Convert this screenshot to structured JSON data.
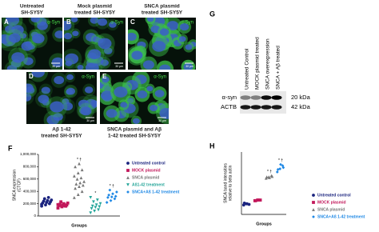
{
  "panels": [
    {
      "letter": "A",
      "label": [
        "Untreated",
        "SH-SY5Y"
      ],
      "marker": "α-Syn",
      "scale": "30 µm"
    },
    {
      "letter": "B",
      "label": [
        "Mock plasmid",
        "treated  SH-SY5Y"
      ],
      "marker": "α-Syn",
      "scale": "30 µm"
    },
    {
      "letter": "C",
      "label": [
        "SNCA plasmid",
        "treated SH-SY5Y"
      ],
      "marker": "α-Syn",
      "scale": "30 µm"
    },
    {
      "letter": "D",
      "label": [
        "Aβ 1-42",
        "treated SH-SY5Y"
      ],
      "marker": "α-Syn",
      "scale": "30 µm"
    },
    {
      "letter": "E",
      "label": [
        "SNCA plasmid and Aβ",
        "1-42 treated SH-SY5Y"
      ],
      "marker": "α-Syn",
      "scale": "30 µm"
    }
  ],
  "blot": {
    "letter": "G",
    "lanes": [
      "Untreated Control",
      "MOCK plasmid treated",
      "SNCA overexpression",
      "SNCA + Aβ treated"
    ],
    "rows": [
      {
        "name": "α-syn",
        "size": "20 kDa"
      },
      {
        "name": "ACTB",
        "size": "42 kDa"
      }
    ]
  },
  "chart_data": [
    {
      "type": "scatter",
      "letter": "F",
      "ylabel": [
        "SNCA expression",
        "(CTCF)"
      ],
      "xlabel": "Groups",
      "ylim": [
        0,
        1000000
      ],
      "yticks": [
        0,
        {
          "value": 200000,
          "label": "200,000"
        },
        {
          "value": 400000,
          "label": "400,000"
        },
        {
          "value": 600000,
          "label": "600,000"
        },
        {
          "value": 800000,
          "label": "800,000"
        },
        {
          "value": 1000000,
          "label": "1,000,000"
        }
      ],
      "series": [
        {
          "name": "Untreated control",
          "color": "#1a237e",
          "marker": "circle",
          "values": [
            160000,
            180000,
            200000,
            210000,
            220000,
            230000,
            240000,
            250000,
            260000,
            280000,
            300000,
            190000
          ]
        },
        {
          "name": "MOCK plasmid",
          "color": "#c2185b",
          "marker": "square",
          "values": [
            130000,
            150000,
            160000,
            170000,
            175000,
            180000,
            190000,
            200000,
            210000,
            230000,
            165000,
            185000
          ]
        },
        {
          "name": "SNCA plasmid",
          "color": "#777777",
          "marker": "triangle",
          "annotation": "* †",
          "values": [
            300000,
            350000,
            400000,
            450000,
            480000,
            500000,
            520000,
            540000,
            560000,
            600000,
            620000,
            650000,
            700000,
            750000,
            800000,
            850000
          ]
        },
        {
          "name": "Aß1-42 treatment",
          "color": "#26a69a",
          "marker": "triangle-down",
          "annotation": "*",
          "values": [
            50000,
            80000,
            100000,
            120000,
            140000,
            150000,
            160000,
            180000,
            200000,
            230000,
            260000,
            300000
          ]
        },
        {
          "name": "SNCA+Aß 1-42 treatment",
          "color": "#1e88e5",
          "marker": "diamond",
          "annotation": "* †",
          "values": [
            220000,
            250000,
            280000,
            300000,
            310000,
            320000,
            340000,
            360000,
            390000,
            420000
          ]
        }
      ]
    },
    {
      "type": "scatter",
      "letter": "H",
      "ylabel": [
        "SNCA band intensities",
        "relative to beta actin"
      ],
      "xlabel": "Groups",
      "ylim": [
        0,
        1
      ],
      "series": [
        {
          "name": "Untreated control",
          "color": "#1a237e",
          "marker": "circle",
          "values": [
            0.15,
            0.17,
            0.16,
            0.18,
            0.17
          ]
        },
        {
          "name": "MOCK plasmid",
          "color": "#c2185b",
          "marker": "square",
          "values": [
            0.22,
            0.23,
            0.23,
            0.22,
            0.23
          ]
        },
        {
          "name": "SNCA plasmid",
          "color": "#777777",
          "marker": "triangle",
          "annotation": "* †",
          "values": [
            0.58,
            0.6,
            0.62,
            0.6,
            0.59,
            0.61
          ]
        },
        {
          "name": "SNCA+Aß 1-42 treatment",
          "color": "#1e88e5",
          "marker": "diamond",
          "annotation": "* †",
          "values": [
            0.68,
            0.73,
            0.78,
            0.72,
            0.8,
            0.75
          ]
        }
      ]
    }
  ]
}
